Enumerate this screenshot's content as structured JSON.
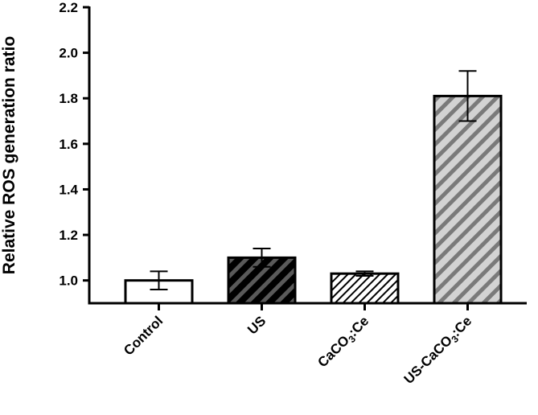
{
  "chart_data": {
    "type": "bar",
    "ylabel": "Relative ROS generation ratio",
    "xlabel": "",
    "title": "",
    "ylim": [
      0.9,
      2.2
    ],
    "y_ticks": [
      "1.0",
      "1.2",
      "1.4",
      "1.6",
      "1.8",
      "2.0",
      "2.2"
    ],
    "categories": [
      {
        "main": "Control",
        "sub": "",
        "tail": ""
      },
      {
        "main": "US",
        "sub": "",
        "tail": ""
      },
      {
        "main": "CaCO",
        "sub": "3",
        "tail": ":Ce"
      },
      {
        "main": "US-CaCO",
        "sub": "3",
        "tail": ":Ce"
      }
    ],
    "values": [
      1.0,
      1.1,
      1.03,
      1.81
    ],
    "error": [
      0.04,
      0.04,
      0.01,
      0.11
    ],
    "bar_fills": [
      "white",
      "dark-hatch",
      "white-hatch",
      "gray-hatch"
    ],
    "grid": false,
    "legend": "none"
  }
}
